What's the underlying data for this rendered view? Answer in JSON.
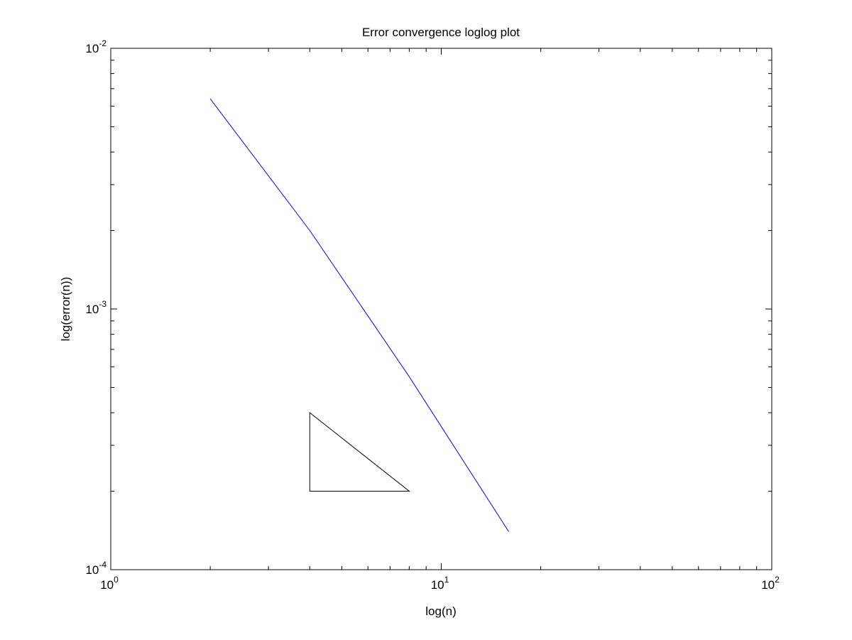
{
  "colors": {
    "background": "#ffffff",
    "axes": "#000000",
    "series_line": "#0000ff",
    "slope_triangle": "#000000"
  },
  "chart_data": {
    "type": "line",
    "title": "Error convergence loglog plot",
    "xlabel": "log(n)",
    "ylabel": "log(error(n))",
    "xscale": "log",
    "yscale": "log",
    "xlim": [
      1,
      100
    ],
    "ylim": [
      0.0001,
      0.01
    ],
    "grid": false,
    "legend": "none",
    "x_ticks": [
      {
        "value": 1,
        "base": "10",
        "exp": "0"
      },
      {
        "value": 10,
        "base": "10",
        "exp": "1"
      },
      {
        "value": 100,
        "base": "10",
        "exp": "2"
      }
    ],
    "y_ticks": [
      {
        "value": 0.01,
        "base": "10",
        "exp": "-2"
      },
      {
        "value": 0.001,
        "base": "10",
        "exp": "-3"
      },
      {
        "value": 0.0001,
        "base": "10",
        "exp": "-4"
      }
    ],
    "series": [
      {
        "color": "#0000ff",
        "x": [
          2,
          4,
          8,
          16
        ],
        "y": [
          0.0064,
          0.002,
          0.00055,
          0.00014
        ]
      }
    ],
    "annotations": [
      {
        "type": "slope_triangle",
        "color": "#000000",
        "vertices": [
          [
            4,
            0.0004
          ],
          [
            4,
            0.0002
          ],
          [
            8,
            0.0002
          ]
        ]
      }
    ]
  }
}
